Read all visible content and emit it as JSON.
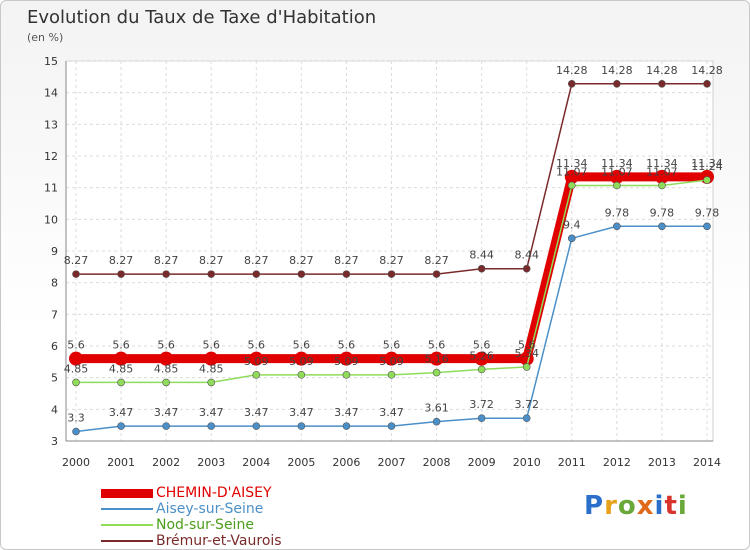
{
  "chart_data": {
    "type": "line",
    "title": "Evolution du Taux de Taxe d'Habitation",
    "subtitle": "(en %)",
    "x": [
      "2000",
      "2001",
      "2002",
      "2003",
      "2004",
      "2005",
      "2006",
      "2007",
      "2008",
      "2009",
      "2010",
      "2011",
      "2012",
      "2013",
      "2014"
    ],
    "ylim": [
      3,
      15
    ],
    "yticks": [
      3,
      4,
      5,
      6,
      7,
      8,
      9,
      10,
      11,
      12,
      13,
      14,
      15
    ],
    "grid": true,
    "legend_position": "bottom-left",
    "series": [
      {
        "name": "CHEMIN-D'AISEY",
        "color": "#e00000",
        "values": [
          5.6,
          5.6,
          5.6,
          5.6,
          5.6,
          5.6,
          5.6,
          5.6,
          5.6,
          5.6,
          5.6,
          11.34,
          11.34,
          11.34,
          11.34
        ],
        "labels": [
          "5.6",
          "5.6",
          "5.6",
          "5.6",
          "5.6",
          "5.6",
          "5.6",
          "5.6",
          "5.6",
          "5.6",
          "5.6",
          "11.34",
          "11.34",
          "11.34",
          "11.34"
        ]
      },
      {
        "name": "Aisey-sur-Seine",
        "color": "#4a8fc8",
        "values": [
          3.3,
          3.47,
          3.47,
          3.47,
          3.47,
          3.47,
          3.47,
          3.47,
          3.61,
          3.72,
          3.72,
          9.4,
          9.78,
          9.78,
          9.78
        ],
        "labels": [
          "3.3",
          "3.47",
          "3.47",
          "3.47",
          "3.47",
          "3.47",
          "3.47",
          "3.47",
          "3.61",
          "3.72",
          "3.72",
          "9.4",
          "9.78",
          "9.78",
          "9.78"
        ]
      },
      {
        "name": "Nod-sur-Seine",
        "color": "#8fdc5a",
        "values": [
          4.85,
          4.85,
          4.85,
          4.85,
          5.09,
          5.09,
          5.09,
          5.09,
          5.16,
          5.26,
          5.34,
          11.07,
          11.07,
          11.07,
          11.24
        ],
        "labels": [
          "4.85",
          "4.85",
          "4.85",
          "4.85",
          "5.09",
          "5.09",
          "5.09",
          "5.09",
          "5.16",
          "5.26",
          "5.34",
          "11.07",
          "11.07",
          "11.07",
          "11.24"
        ]
      },
      {
        "name": "Brémur-et-Vaurois",
        "color": "#7a2a2a",
        "values": [
          8.27,
          8.27,
          8.27,
          8.27,
          8.27,
          8.27,
          8.27,
          8.27,
          8.27,
          8.44,
          8.44,
          14.28,
          14.28,
          14.28,
          14.28
        ],
        "labels": [
          "8.27",
          "8.27",
          "8.27",
          "8.27",
          "8.27",
          "8.27",
          "8.27",
          "8.27",
          "8.27",
          "8.44",
          "8.44",
          "14.28",
          "14.28",
          "14.28",
          "14.28"
        ]
      }
    ]
  },
  "logo_text": "Proxiti"
}
